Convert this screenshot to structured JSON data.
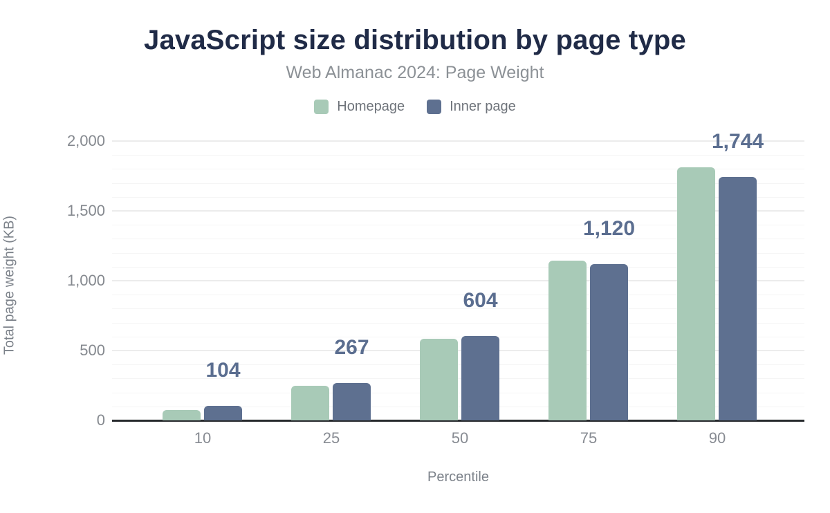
{
  "title": "JavaScript size distribution by page type",
  "subtitle": "Web Almanac 2024: Page Weight",
  "legend": {
    "items": [
      {
        "label": "Homepage",
        "color": "#a8cab7"
      },
      {
        "label": "Inner page",
        "color": "#5e7090"
      }
    ]
  },
  "colors": {
    "title": "#202b47",
    "subtitle": "#8c9196",
    "homepage_bar": "#a8cab7",
    "inner_page_bar": "#5e7090",
    "data_label": "#5b6e90",
    "tick_label": "#85898f",
    "axis_line": "#26292c"
  },
  "chart_data": {
    "type": "bar",
    "title": "JavaScript size distribution by page type",
    "subtitle": "Web Almanac 2024: Page Weight",
    "categories": [
      "10",
      "25",
      "50",
      "75",
      "90"
    ],
    "series": [
      {
        "name": "Homepage",
        "color": "#a8cab7",
        "values": [
          75,
          250,
          585,
          1145,
          1810
        ]
      },
      {
        "name": "Inner page",
        "color": "#5e7090",
        "values": [
          104,
          267,
          604,
          1120,
          1744
        ],
        "labels": [
          "104",
          "267",
          "604",
          "1,120",
          "1,744"
        ]
      }
    ],
    "data_labels_shown_for": "Inner page",
    "xlabel": "Percentile",
    "ylabel": "Total page weight (KB)",
    "ylim": [
      0,
      2000
    ],
    "yticks": [
      0,
      500,
      1000,
      1500,
      2000
    ],
    "ytick_labels": [
      "0",
      "500",
      "1,000",
      "1,500",
      "2,000"
    ],
    "grid": {
      "major_every": 500,
      "minor_every": 100,
      "on": true
    },
    "legend_position": "top"
  }
}
